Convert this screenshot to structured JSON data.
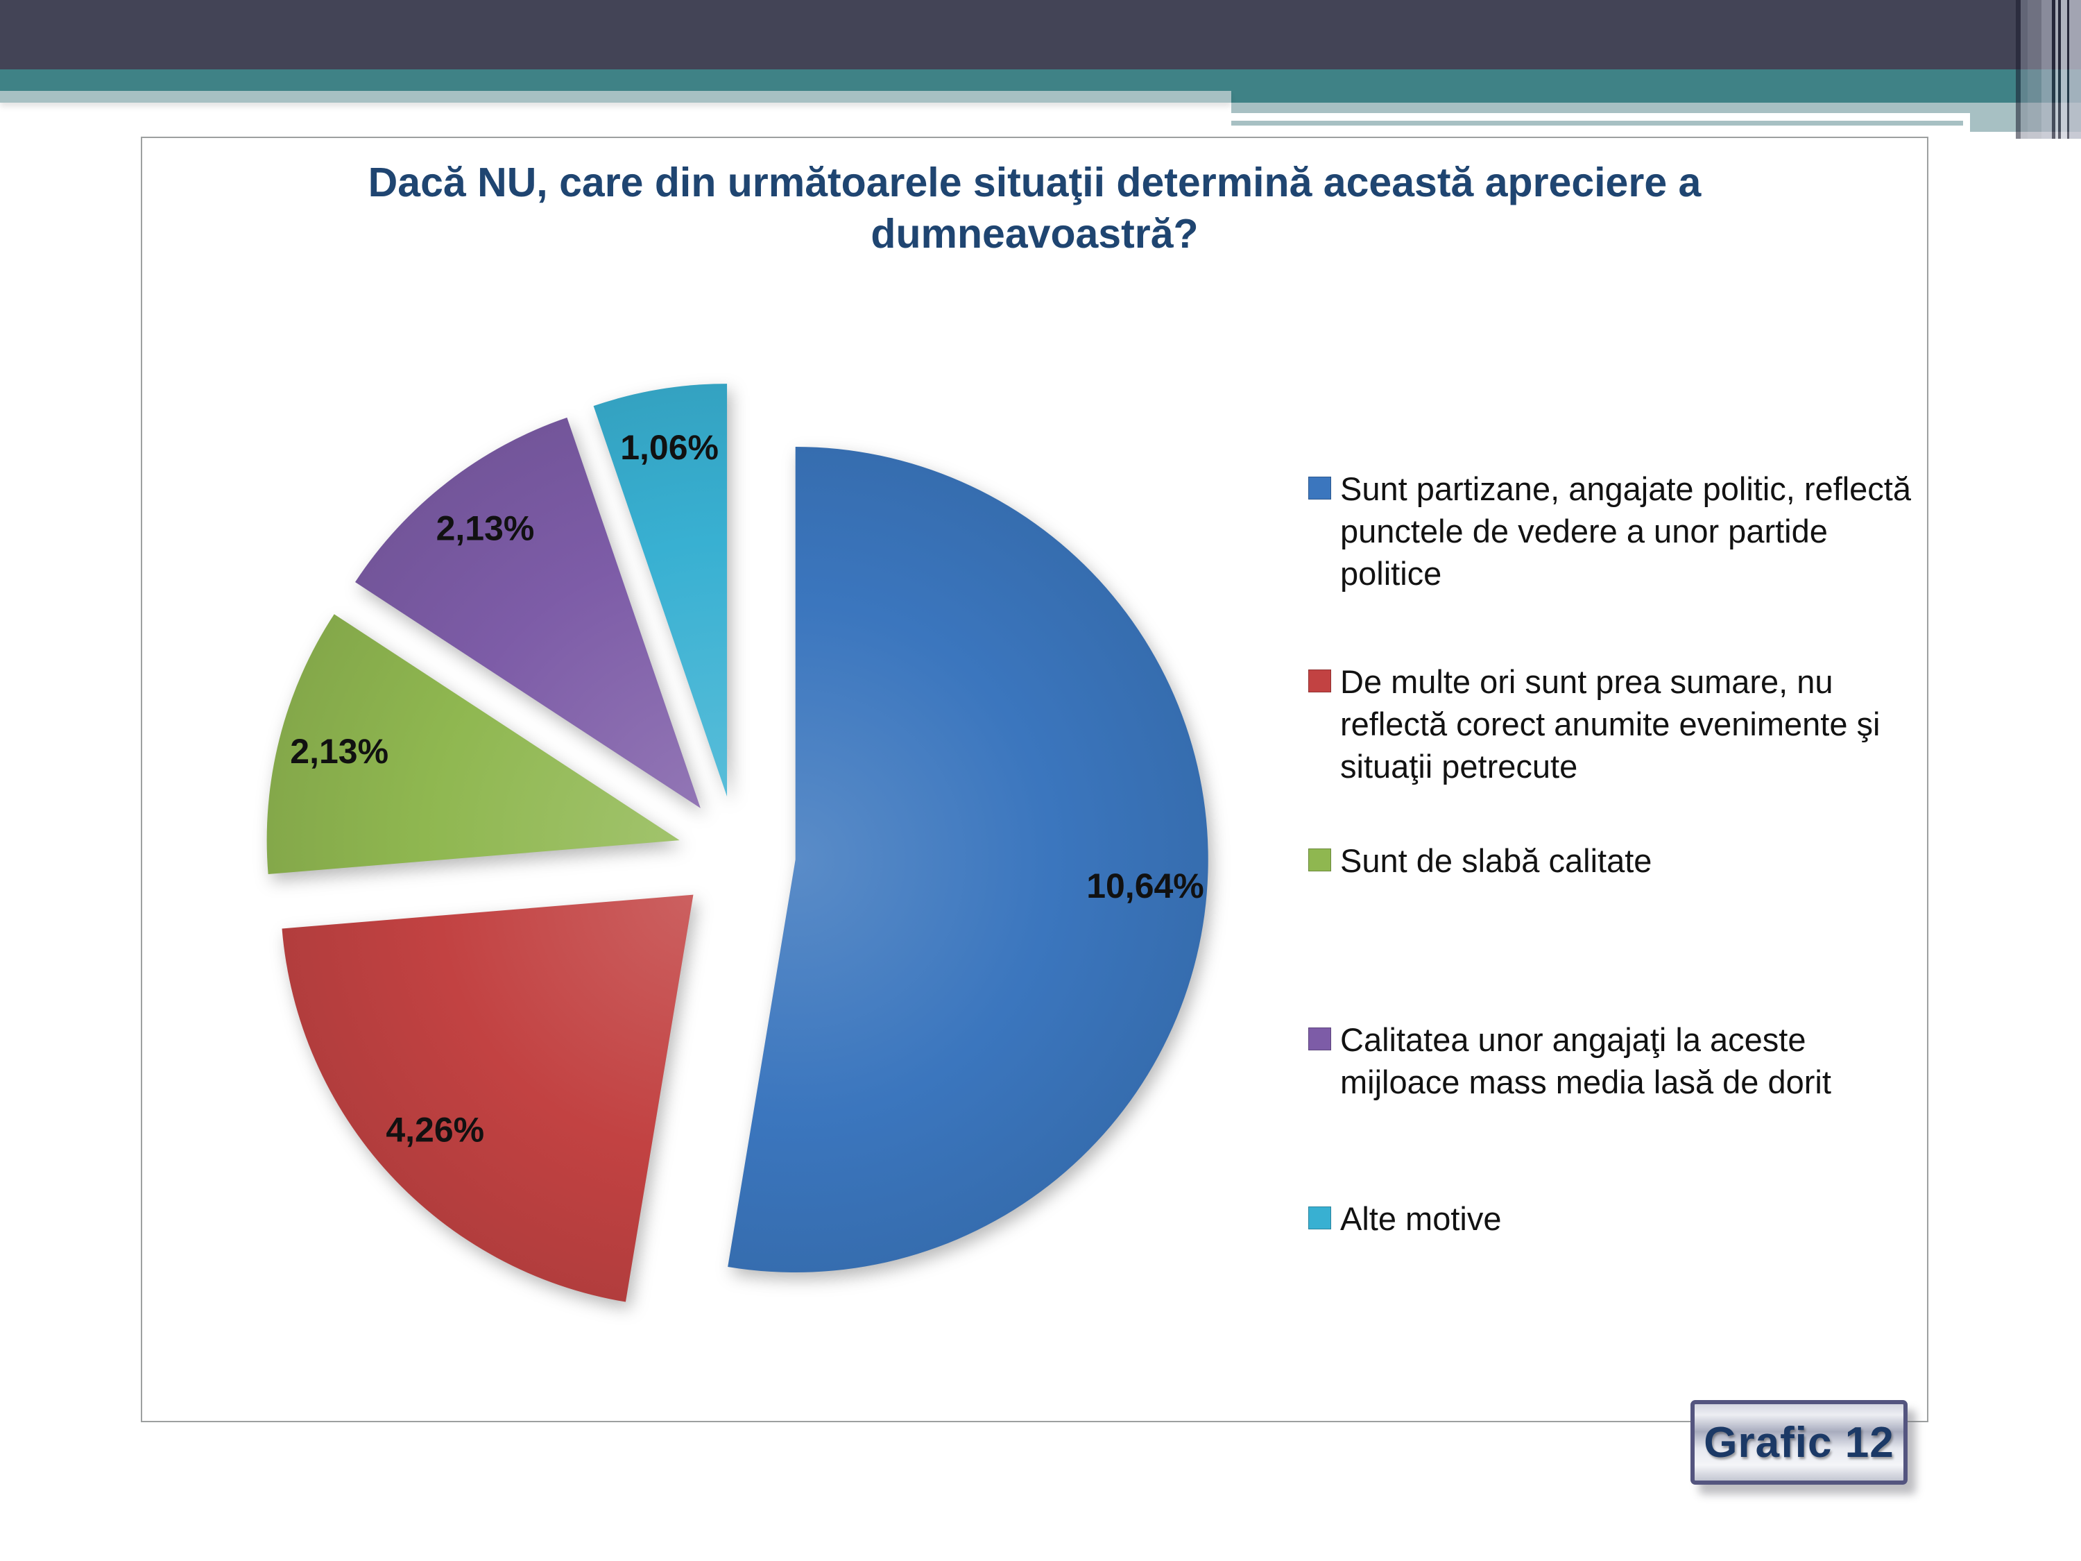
{
  "slide": {
    "caption": "Grafic 12"
  },
  "chart_data": {
    "type": "pie",
    "title": "Dacă NU, care din următoarele situaţii determină această apreciere a dumneavoastră?",
    "slices": [
      {
        "label": "Sunt partizane, angajate politic, reflectă punctele de vedere a unor partide politice",
        "value": 10.64,
        "display": "10,64%",
        "color": "#3B76BE"
      },
      {
        "label": "De multe ori sunt prea sumare, nu reflectă corect anumite evenimente şi situaţii petrecute",
        "value": 4.26,
        "display": "4,26%",
        "color": "#C24242"
      },
      {
        "label": "Sunt de slabă calitate",
        "value": 2.13,
        "display": "2,13%",
        "color": "#8FB750"
      },
      {
        "label": "Calitatea unor angajaţi la aceste mijloace mass media lasă de dorit",
        "value": 2.13,
        "display": "2,13%",
        "color": "#7D5CA7"
      },
      {
        "label": "Alte motive",
        "value": 1.06,
        "display": "1,06%",
        "color": "#38B0D2"
      }
    ],
    "start_angle_deg": 0,
    "direction": "clockwise",
    "exploded": true,
    "legend_position": "right",
    "label_color": "#111111"
  },
  "theme": {
    "title_color": "#1F4571",
    "band_dark": "#434456",
    "band_teal": "#3F8286",
    "band_light": "#A7C0C3",
    "caption_text_color": "#1B3966",
    "caption_border_color": "#54557F",
    "chart_border_color": "#9DA0A0"
  }
}
